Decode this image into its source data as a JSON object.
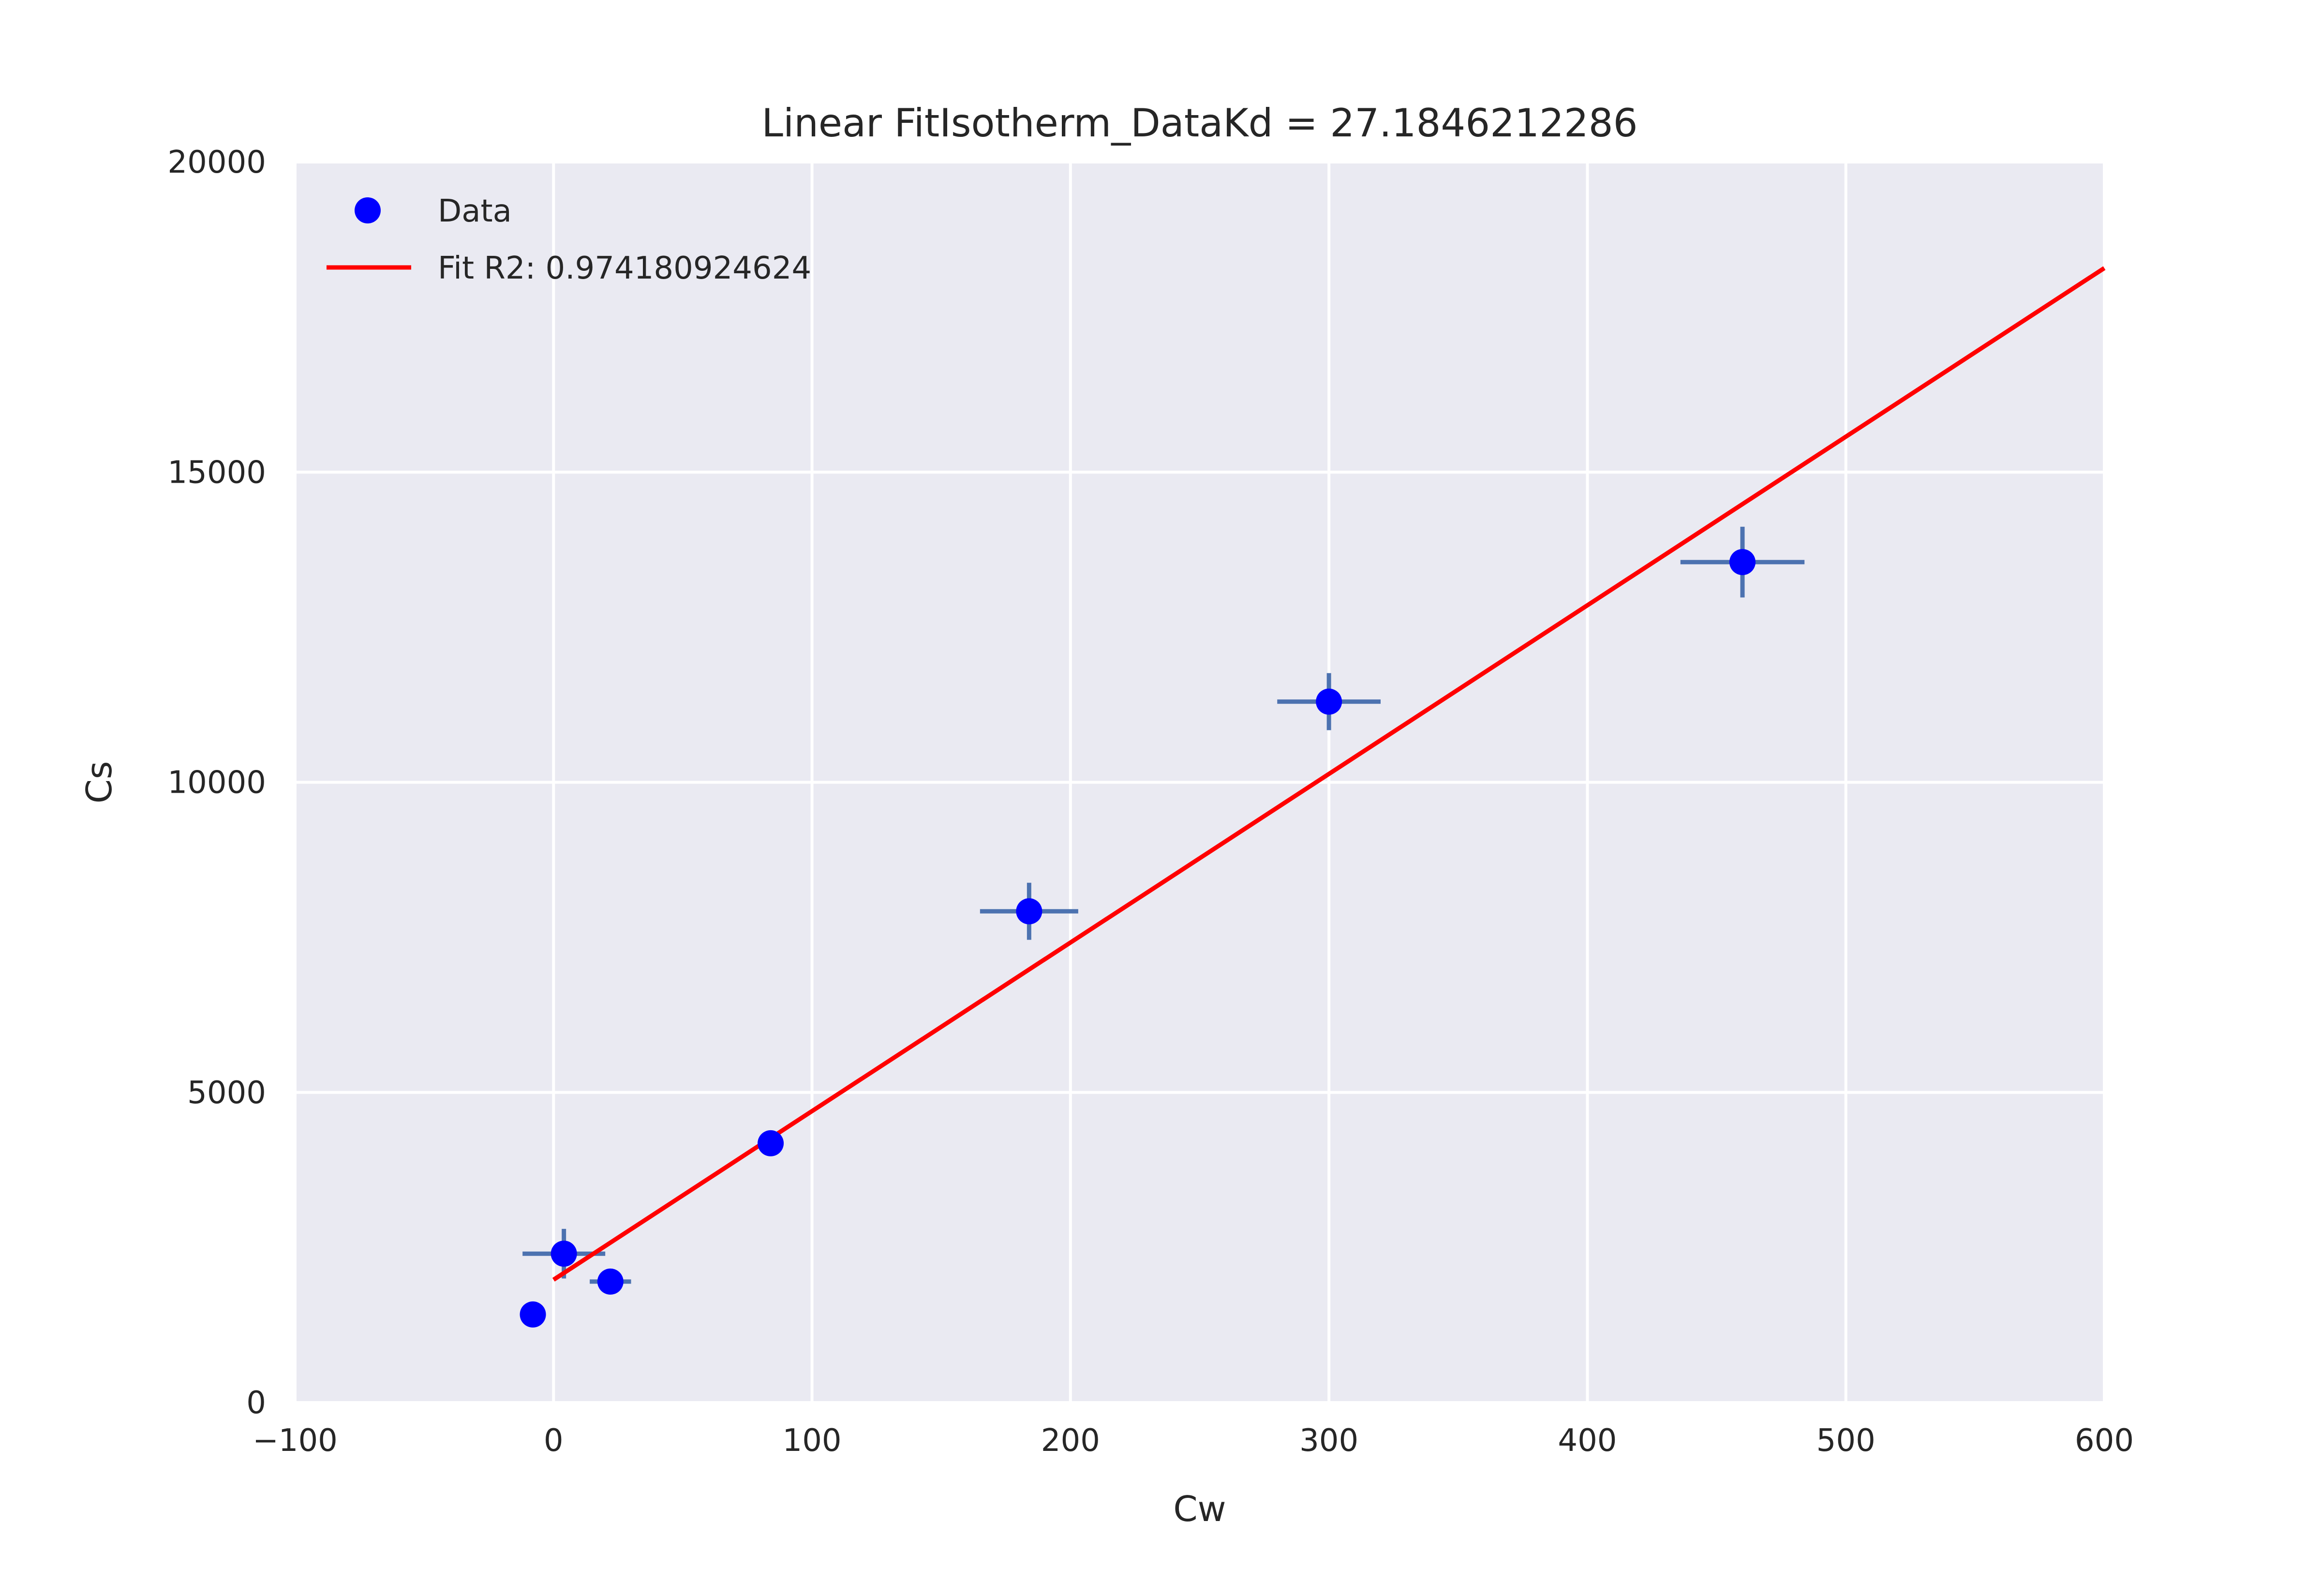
{
  "chart_data": {
    "type": "scatter",
    "title": "Linear FitIsotherm_DataKd = 27.1846212286",
    "xlabel": "Cw",
    "ylabel": "Cs",
    "xlim": [
      -100,
      600
    ],
    "ylim": [
      0,
      20000
    ],
    "x_ticks": [
      -100,
      0,
      100,
      200,
      300,
      400,
      500,
      600
    ],
    "x_tick_labels": [
      "−100",
      "0",
      "100",
      "200",
      "300",
      "400",
      "500",
      "600"
    ],
    "y_ticks": [
      0,
      5000,
      10000,
      15000,
      20000
    ],
    "y_tick_labels": [
      "0",
      "5000",
      "10000",
      "15000",
      "20000"
    ],
    "grid": true,
    "legend_position": "top-left",
    "series": [
      {
        "name": "Data",
        "kind": "points",
        "color": "#0000ff",
        "errorbar_color": "#4c72b0",
        "points": [
          {
            "x": -8,
            "y": 1420,
            "xerr": 0,
            "yerr": 0
          },
          {
            "x": 4,
            "y": 2400,
            "xerr": 16,
            "yerr": 400
          },
          {
            "x": 22,
            "y": 1950,
            "xerr": 8,
            "yerr": 0
          },
          {
            "x": 84,
            "y": 4180,
            "xerr": 0,
            "yerr": 0
          },
          {
            "x": 184,
            "y": 7920,
            "xerr": 19,
            "yerr": 460
          },
          {
            "x": 300,
            "y": 11300,
            "xerr": 20,
            "yerr": 460
          },
          {
            "x": 460,
            "y": 13550,
            "xerr": 24,
            "yerr": 570
          }
        ]
      },
      {
        "name": "Fit R2: 0.974180924624",
        "kind": "line",
        "color": "#ff0000",
        "x": [
          0,
          600
        ],
        "y": [
          1980,
          18290
        ]
      }
    ]
  }
}
